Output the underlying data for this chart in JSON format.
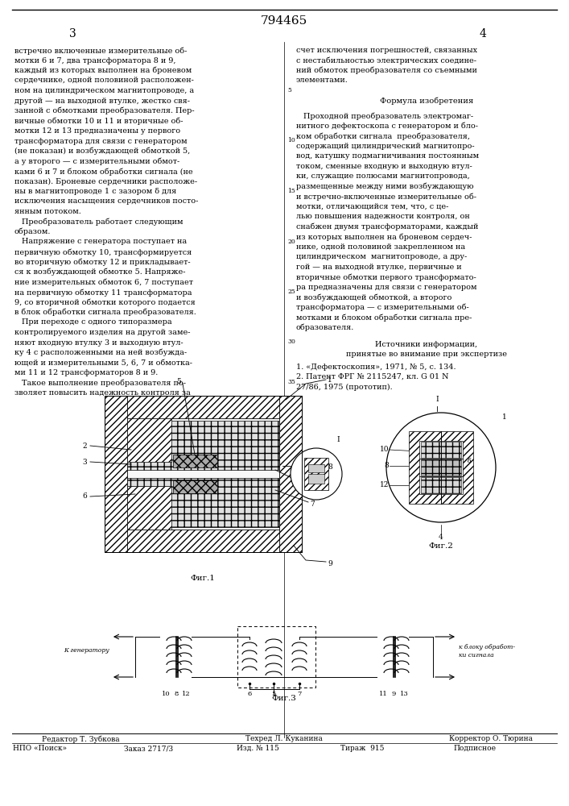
{
  "patent_number": "794465",
  "page_left": "3",
  "page_right": "4",
  "background_color": "#ffffff",
  "text_color": "#000000",
  "left_column_text": [
    "встречно включенные измерительные об-",
    "мотки 6 и 7, два трансформатора 8 и 9,",
    "каждый из которых выполнен на броневом",
    "сердечнике, одной половиной расположен-",
    "ном на цилиндрическом магнитопроводе, а",
    "другой — на выходной втулке, жестко свя-",
    "занной с обмотками преобразователя. Пер-",
    "вичные обмотки 10 и 11 и вторичные об-",
    "мотки 12 и 13 предназначены у первого",
    "трансформатора для связи с генератором",
    "(не показан) и возбуждающей обмоткой 5,",
    "а у второго — с измерительными обмот-",
    "ками 6 и 7 и блоком обработки сигнала (не",
    "показан). Броневые сердечники расположе-",
    "ны в магнитопроводе 1 с зазором δ для",
    "исключения насыщения сердечников посто-",
    "янным потоком.",
    "   Преобразователь работает следующим",
    "образом.",
    "   Напряжение с генератора поступает на",
    "первичную обмотку 10, трансформируется",
    "во вторичную обмотку 12 и прикладывает-",
    "ся к возбуждающей обмотке 5. Напряже-",
    "ние измерительных обмоток 6, 7 поступает",
    "на первичную обмотку 11 трансформатора",
    "9, со вторичной обмотки которого подается",
    "в блок обработки сигнала преобразователя.",
    "   При переходе с одного типоразмера",
    "контролируемого изделия на другой заме-",
    "няют входную втулку 3 и выходную втул-",
    "ку 4 с расположенными на ней возбужда-",
    "ющей и измерительными 5, 6, 7 и обмотка-",
    "ми 11 и 12 трансформаторов 8 и 9.",
    "   Такое выполнение преобразователя по-",
    "зволяет повысить надежность контроля за"
  ],
  "right_column_text_upper": [
    "счет исключения погрешностей, связанных",
    "с нестабильностью электрических соедине-",
    "ний обмоток преобразователя со съемными",
    "элементами."
  ],
  "formula_header": "Формула изобретения",
  "formula_text": [
    "   Проходной преобразователь электромаг-",
    "нитного дефектоскопа с генератором и бло-",
    "ком обработки сигнала  преобразователя,",
    "содержащий цилиндрический магнитопро-",
    "вод, катушку подмагничивания постоянным",
    "током, сменные входную и выходную втул-",
    "ки, служащие полюсами магнитопровода,",
    "размещенные между ними возбуждающую",
    "и встречно-включенные измерительные об-",
    "мотки, отличающийся тем, что, с це-",
    "лью повышения надежности контроля, он",
    "снабжен двумя трансформаторами, каждый",
    "из которых выполнен на броневом сердеч-",
    "нике, одной половиной закрепленном на",
    "цилиндрическом  магнитопроводе, а дру-",
    "гой — на выходной втулке, первичные и",
    "вторичные обмотки первого трансформато-",
    "ра предназначены для связи с генератором",
    "и возбуждающей обмоткой, а второго",
    "трансформатора — с измерительными об-",
    "мотками и блоком обработки сигнала пре-",
    "образователя."
  ],
  "sources_header": "Источники информации,",
  "sources_subheader": "принятые во внимание при экспертизе",
  "sources": [
    "1. «Дефектоскопия», 1971, № 5, с. 134.",
    "2. Патент ФРГ № 2115247, кл. G 01 N",
    "27/86, 1975 (прототип)."
  ],
  "fig1_label": "Фиг.1",
  "fig2_label": "Фиг.2",
  "fig3_label": "Фиг.3",
  "footer_left": "Редактор Т. Зубкова",
  "footer_center1": "Техред Л. Куканина",
  "footer_right": "Корректор О. Тюрина",
  "footer2_col1": "НПО «Поиск»",
  "footer2_col2": "Заказ 2717/3",
  "footer2_col3": "Изд. № 115",
  "footer2_col4": "Тираж  915",
  "footer2_col5": "Подписное"
}
